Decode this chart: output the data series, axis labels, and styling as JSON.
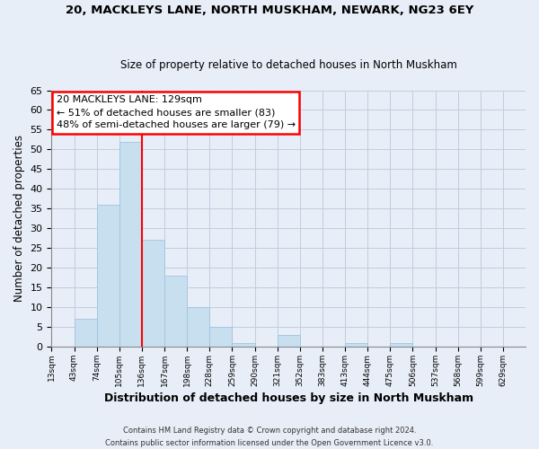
{
  "title": "20, MACKLEYS LANE, NORTH MUSKHAM, NEWARK, NG23 6EY",
  "subtitle": "Size of property relative to detached houses in North Muskham",
  "xlabel": "Distribution of detached houses by size in North Muskham",
  "ylabel": "Number of detached properties",
  "bar_color": "#c8dff0",
  "bar_edge_color": "#a0c4e0",
  "vline_color": "red",
  "vline_x": 4.0,
  "bin_labels": [
    "13sqm",
    "43sqm",
    "74sqm",
    "105sqm",
    "136sqm",
    "167sqm",
    "198sqm",
    "228sqm",
    "259sqm",
    "290sqm",
    "321sqm",
    "352sqm",
    "383sqm",
    "413sqm",
    "444sqm",
    "475sqm",
    "506sqm",
    "537sqm",
    "568sqm",
    "599sqm",
    "629sqm"
  ],
  "bar_heights": [
    0,
    7,
    36,
    52,
    27,
    18,
    10,
    5,
    1,
    0,
    3,
    0,
    0,
    1,
    0,
    1,
    0,
    0,
    0,
    0,
    0
  ],
  "ylim": [
    0,
    65
  ],
  "yticks": [
    0,
    5,
    10,
    15,
    20,
    25,
    30,
    35,
    40,
    45,
    50,
    55,
    60,
    65
  ],
  "annotation_title": "20 MACKLEYS LANE: 129sqm",
  "annotation_line1": "← 51% of detached houses are smaller (83)",
  "annotation_line2": "48% of semi-detached houses are larger (79) →",
  "footer1": "Contains HM Land Registry data © Crown copyright and database right 2024.",
  "footer2": "Contains public sector information licensed under the Open Government Licence v3.0.",
  "background_color": "#e8eef8",
  "plot_bg_color": "#e8eef8",
  "grid_color": "#c0cce0"
}
